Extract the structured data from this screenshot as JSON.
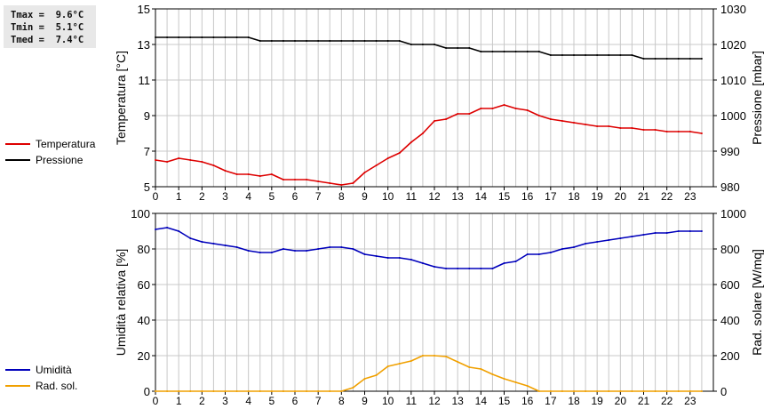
{
  "stats": {
    "tmax": "Tmax =  9.6°C",
    "tmin": "Tmin =  5.1°C",
    "tmed": "Tmed =  7.4°C"
  },
  "colors": {
    "temperature": "#dd0000",
    "pressure": "#000000",
    "humidity": "#0000bb",
    "radiation": "#f0a000",
    "grid": "#c8c8c8"
  },
  "chart_data": [
    {
      "type": "line",
      "x_ticks": [
        "0",
        "1",
        "2",
        "3",
        "4",
        "5",
        "6",
        "7",
        "8",
        "9",
        "10",
        "11",
        "12",
        "13",
        "14",
        "15",
        "16",
        "17",
        "18",
        "19",
        "20",
        "21",
        "22",
        "23"
      ],
      "xlim": [
        0,
        24
      ],
      "ylabel": "Temperatura [°C]",
      "ylim": [
        5,
        15
      ],
      "y_ticks": [
        "5",
        "7",
        "9",
        "11",
        "13",
        "15"
      ],
      "y2label": "Pressione [mbar]",
      "y2lim": [
        980,
        1030
      ],
      "y2_ticks": [
        "980",
        "990",
        "1000",
        "1010",
        "1020",
        "1030"
      ],
      "grid": true,
      "legend_placement": "left",
      "series": [
        {
          "name": "Temperatura",
          "axis": "left",
          "x": [
            0,
            0.5,
            1,
            1.5,
            2,
            2.5,
            3,
            3.5,
            4,
            4.5,
            5,
            5.5,
            6,
            6.5,
            7,
            7.5,
            8,
            8.5,
            9,
            9.5,
            10,
            10.5,
            11,
            11.5,
            12,
            12.5,
            13,
            13.5,
            14,
            14.5,
            15,
            15.5,
            16,
            16.5,
            17,
            17.5,
            18,
            18.5,
            19,
            19.5,
            20,
            20.5,
            21,
            21.5,
            22,
            22.5,
            23,
            23.5
          ],
          "values": [
            6.5,
            6.4,
            6.6,
            6.5,
            6.4,
            6.2,
            5.9,
            5.7,
            5.7,
            5.6,
            5.7,
            5.4,
            5.4,
            5.4,
            5.3,
            5.2,
            5.1,
            5.2,
            5.8,
            6.2,
            6.6,
            6.9,
            7.5,
            8.0,
            8.7,
            8.8,
            9.1,
            9.1,
            9.4,
            9.4,
            9.6,
            9.4,
            9.3,
            9.0,
            8.8,
            8.7,
            8.6,
            8.5,
            8.4,
            8.4,
            8.3,
            8.3,
            8.2,
            8.2,
            8.1,
            8.1,
            8.1,
            8.0
          ]
        },
        {
          "name": "Pressione",
          "axis": "right",
          "x": [
            0,
            0.5,
            1,
            1.5,
            2,
            2.5,
            3,
            3.5,
            4,
            4.5,
            5,
            5.5,
            6,
            6.5,
            7,
            7.5,
            8,
            8.5,
            9,
            9.5,
            10,
            10.5,
            11,
            11.5,
            12,
            12.5,
            13,
            13.5,
            14,
            14.5,
            15,
            15.5,
            16,
            16.5,
            17,
            17.5,
            18,
            18.5,
            19,
            19.5,
            20,
            20.5,
            21,
            21.5,
            22,
            22.5,
            23,
            23.5
          ],
          "values": [
            1022,
            1022,
            1022,
            1022,
            1022,
            1022,
            1022,
            1022,
            1022,
            1021,
            1021,
            1021,
            1021,
            1021,
            1021,
            1021,
            1021,
            1021,
            1021,
            1021,
            1021,
            1021,
            1020,
            1020,
            1020,
            1019,
            1019,
            1019,
            1018,
            1018,
            1018,
            1018,
            1018,
            1018,
            1017,
            1017,
            1017,
            1017,
            1017,
            1017,
            1017,
            1017,
            1016,
            1016,
            1016,
            1016,
            1016,
            1016
          ]
        }
      ]
    },
    {
      "type": "line",
      "x_ticks": [
        "0",
        "1",
        "2",
        "3",
        "4",
        "5",
        "6",
        "7",
        "8",
        "9",
        "10",
        "11",
        "12",
        "13",
        "14",
        "15",
        "16",
        "17",
        "18",
        "19",
        "20",
        "21",
        "22",
        "23"
      ],
      "xlim": [
        0,
        24
      ],
      "ylabel": "Umidità relativa [%]",
      "ylim": [
        0,
        100
      ],
      "y_ticks": [
        "0",
        "20",
        "40",
        "60",
        "80",
        "100"
      ],
      "y2label": "Rad. solare [W/mq]",
      "y2lim": [
        0,
        1000
      ],
      "y2_ticks": [
        "0",
        "200",
        "400",
        "600",
        "800",
        "1000"
      ],
      "grid": true,
      "legend_placement": "left",
      "series": [
        {
          "name": "Umidità",
          "axis": "left",
          "x": [
            0,
            0.5,
            1,
            1.5,
            2,
            2.5,
            3,
            3.5,
            4,
            4.5,
            5,
            5.5,
            6,
            6.5,
            7,
            7.5,
            8,
            8.5,
            9,
            9.5,
            10,
            10.5,
            11,
            11.5,
            12,
            12.5,
            13,
            13.5,
            14,
            14.5,
            15,
            15.5,
            16,
            16.5,
            17,
            17.5,
            18,
            18.5,
            19,
            19.5,
            20,
            20.5,
            21,
            21.5,
            22,
            22.5,
            23,
            23.5
          ],
          "values": [
            91,
            92,
            90,
            86,
            84,
            83,
            82,
            81,
            79,
            78,
            78,
            80,
            79,
            79,
            80,
            81,
            81,
            80,
            77,
            76,
            75,
            75,
            74,
            72,
            70,
            69,
            69,
            69,
            69,
            69,
            72,
            73,
            77,
            77,
            78,
            80,
            81,
            83,
            84,
            85,
            86,
            87,
            88,
            89,
            89,
            90,
            90,
            90
          ]
        },
        {
          "name": "Rad. sol.",
          "axis": "right",
          "x": [
            0,
            0.5,
            1,
            1.5,
            2,
            2.5,
            3,
            3.5,
            4,
            4.5,
            5,
            5.5,
            6,
            6.5,
            7,
            7.5,
            8,
            8.5,
            9,
            9.5,
            10,
            10.5,
            11,
            11.5,
            12,
            12.5,
            13,
            13.5,
            14,
            14.5,
            15,
            15.5,
            16,
            16.5,
            17,
            17.5,
            18,
            18.5,
            19,
            19.5,
            20,
            20.5,
            21,
            21.5,
            22,
            22.5,
            23,
            23.5
          ],
          "values": [
            0,
            0,
            0,
            0,
            0,
            0,
            0,
            0,
            0,
            0,
            0,
            0,
            0,
            0,
            0,
            0,
            0,
            20,
            70,
            90,
            140,
            155,
            170,
            200,
            200,
            195,
            165,
            135,
            125,
            95,
            70,
            50,
            30,
            0,
            0,
            0,
            0,
            0,
            0,
            0,
            0,
            0,
            0,
            0,
            0,
            0,
            0,
            0
          ]
        }
      ]
    }
  ]
}
